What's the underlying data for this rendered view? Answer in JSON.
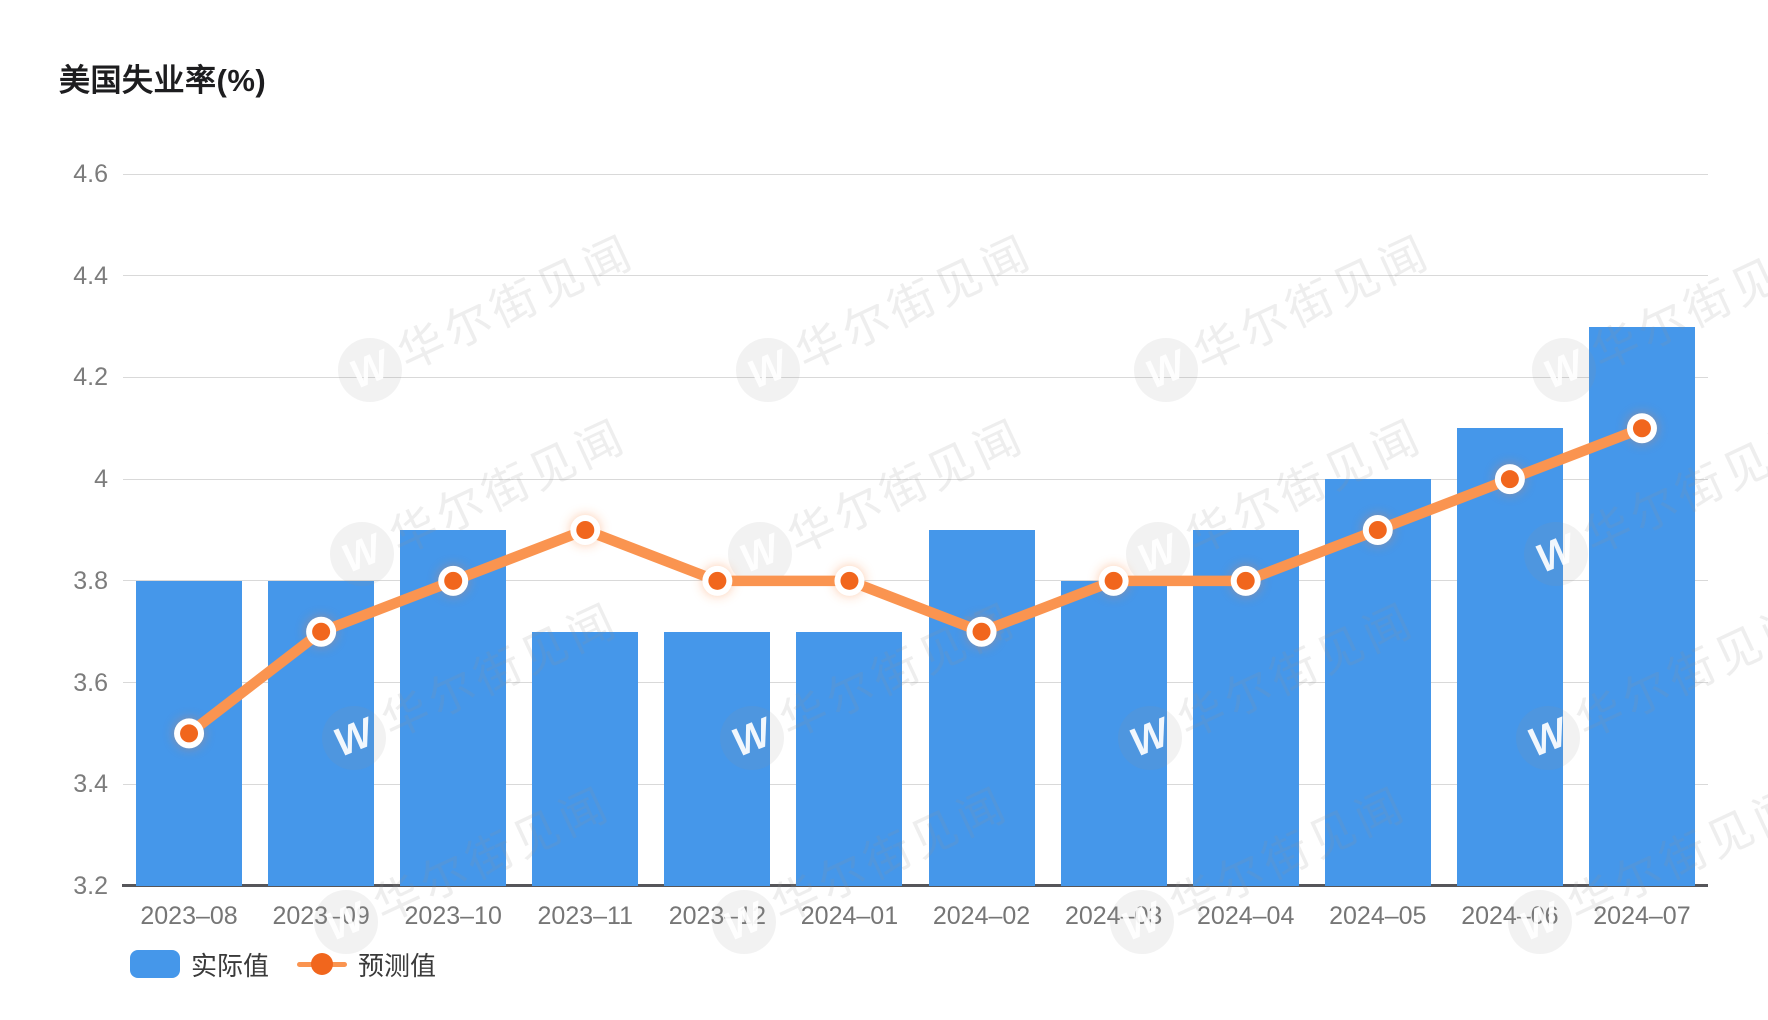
{
  "title": "美国失业率(%)",
  "legend": {
    "actual_label": "实际值",
    "forecast_label": "预测值"
  },
  "watermark": {
    "text": "华尔街见闻",
    "logo_letter": "W"
  },
  "colors": {
    "background": "#FFFFFF",
    "bar_fill": "#4597EA",
    "line_stroke": "#FA9450",
    "marker_fill": "#F1661D",
    "marker_ring": "#FFFFFF",
    "marker_glow": "#FB7C2E",
    "grid_line": "#D9D9D9",
    "axis_baseline": "#56565A",
    "y_tick_label": "#7C7C7C",
    "x_tick_label": "#767676",
    "title_text": "#1D1D1F",
    "legend_text": "#3A3A3A"
  },
  "chart_data": {
    "type": "bar",
    "subtype": "bar-with-line-overlay",
    "title": "美国失业率(%)",
    "categories": [
      "2023–08",
      "2023–09",
      "2023–10",
      "2023–11",
      "2023–12",
      "2024–01",
      "2024–02",
      "2024–03",
      "2024–04",
      "2024–05",
      "2024–06",
      "2024–07"
    ],
    "series": [
      {
        "name": "实际值",
        "type": "bar",
        "values": [
          3.8,
          3.8,
          3.9,
          3.7,
          3.7,
          3.7,
          3.9,
          3.8,
          3.9,
          4.0,
          4.1,
          4.3
        ]
      },
      {
        "name": "预测值",
        "type": "line",
        "values": [
          3.5,
          3.7,
          3.8,
          3.9,
          3.8,
          3.8,
          3.7,
          3.8,
          3.8,
          3.9,
          4.0,
          4.1
        ]
      }
    ],
    "xlabel": "",
    "ylabel": "",
    "ylim": [
      3.2,
      4.6
    ],
    "ytick_step": 0.2,
    "ytick_labels": [
      "4.6",
      "4.4",
      "4.2",
      "4",
      "3.8",
      "3.6",
      "3.4",
      "3.2"
    ],
    "grid": true,
    "legend_position": "bottom-left"
  }
}
